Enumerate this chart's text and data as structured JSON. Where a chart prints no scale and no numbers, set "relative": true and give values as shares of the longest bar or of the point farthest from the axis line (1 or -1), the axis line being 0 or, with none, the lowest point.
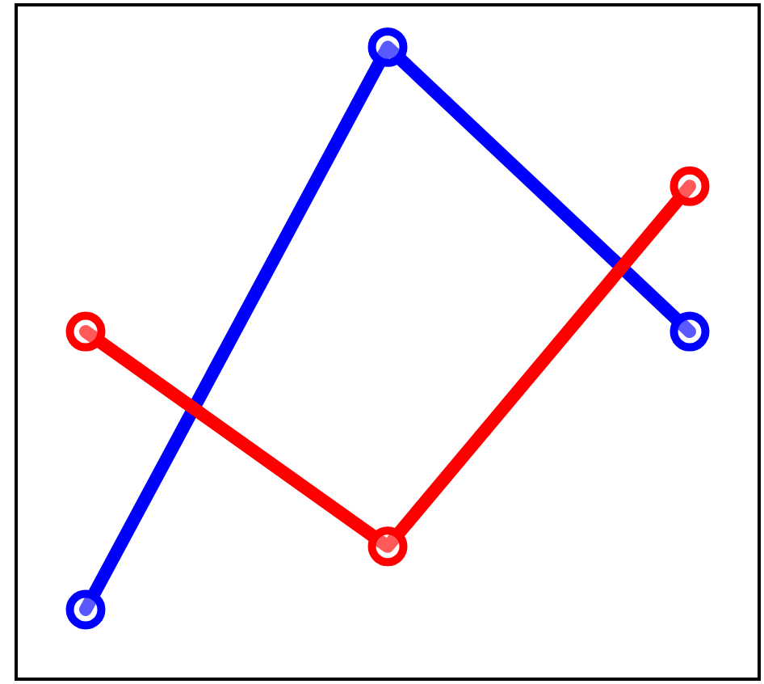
{
  "chart_data": {
    "type": "line",
    "relative": true,
    "categories": [
      null,
      null,
      null
    ],
    "series": [
      {
        "color": "#0000ff",
        "values": [
          0.11,
          1,
          0.55
        ]
      },
      {
        "color": "#ff0000",
        "values": [
          0.55,
          0.21,
          0.78
        ]
      }
    ],
    "marker": "circle",
    "line_style": "solid"
  }
}
